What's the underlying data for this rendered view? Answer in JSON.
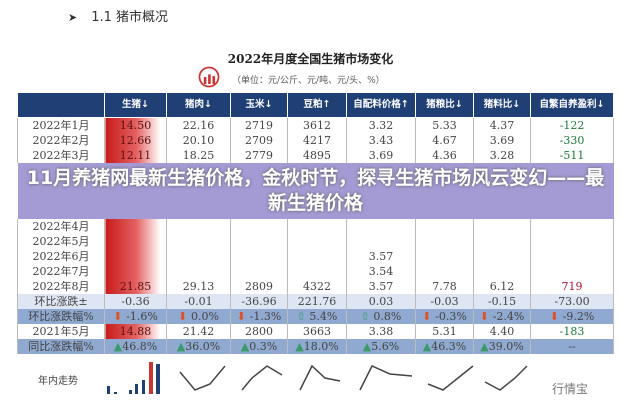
{
  "section": {
    "title": "1.1 猪市概况"
  },
  "chart_title": "2022年月度全国生猪市场变化",
  "unit": "（单位：元/公斤、元/吨、元/头、%）",
  "headline": "11月养猪网最新生猪价格，金秋时节，探寻生猪市场风云变幻——最新生猪价格",
  "columns": [
    "",
    "生猪↓",
    "猪肉↓",
    "玉米↓",
    "豆粕↑",
    "自配料价格↑",
    "猪粮比↓",
    "猪料比↓",
    "自繁自养盈利↓"
  ],
  "rows": [
    {
      "label": "2022年1月",
      "cells": [
        "14.50",
        "22.16",
        "2719",
        "3612",
        "3.32",
        "5.33",
        "4.37",
        "-122"
      ]
    },
    {
      "label": "2022年2月",
      "cells": [
        "12.66",
        "20.10",
        "2709",
        "4217",
        "3.43",
        "4.67",
        "3.69",
        "-330"
      ]
    },
    {
      "label": "2022年3月",
      "cells": [
        "12.11",
        "18.25",
        "2779",
        "4895",
        "3.69",
        "4.36",
        "3.28",
        "-511"
      ]
    },
    {
      "label": "2022年4月",
      "cells": [
        "",
        "",
        "",
        "",
        "",
        "",
        "",
        ""
      ]
    },
    {
      "label": "2022年5月",
      "cells": [
        "",
        "",
        "",
        "",
        "",
        "",
        "",
        ""
      ]
    },
    {
      "label": "2022年6月",
      "cells": [
        "",
        "",
        "",
        "",
        "3.57",
        "",
        "",
        ""
      ]
    },
    {
      "label": "2022年7月",
      "cells": [
        "",
        "",
        "",
        "",
        "3.54",
        "",
        "",
        ""
      ]
    },
    {
      "label": "2022年8月",
      "cells": [
        "21.85",
        "29.13",
        "2809",
        "4322",
        "3.57",
        "7.78",
        "6.12",
        "719"
      ]
    },
    {
      "label": "环比涨跌±",
      "cells": [
        "-0.36",
        "-0.01",
        "-36.96",
        "221.76",
        "0.03",
        "-0.03",
        "-0.15",
        "-73.00"
      ]
    },
    {
      "label": "环比涨跌幅%",
      "cells": [
        "-1.6%",
        "0.0%",
        "-1.3%",
        "5.4%",
        "0.8%",
        "-0.3%",
        "-2.4%",
        "-9.2%"
      ],
      "dirs": [
        "down",
        "down",
        "down",
        "up",
        "up",
        "down",
        "down",
        "down"
      ]
    },
    {
      "label": "2021年5月",
      "cells": [
        "14.88",
        "21.42",
        "2800",
        "3663",
        "3.38",
        "5.31",
        "4.40",
        "-183"
      ]
    },
    {
      "label": "同比涨跌幅%",
      "cells": [
        "46.8%",
        "36.0%",
        "0.3%",
        "18.0%",
        "5.6%",
        "46.3%",
        "39.0%",
        "--"
      ]
    }
  ],
  "trend_label": "年内走势",
  "watermark": "行情宝",
  "colors": {
    "header": "#1f3f75",
    "negative": "#1a7a3a",
    "positive": "#b01030"
  }
}
